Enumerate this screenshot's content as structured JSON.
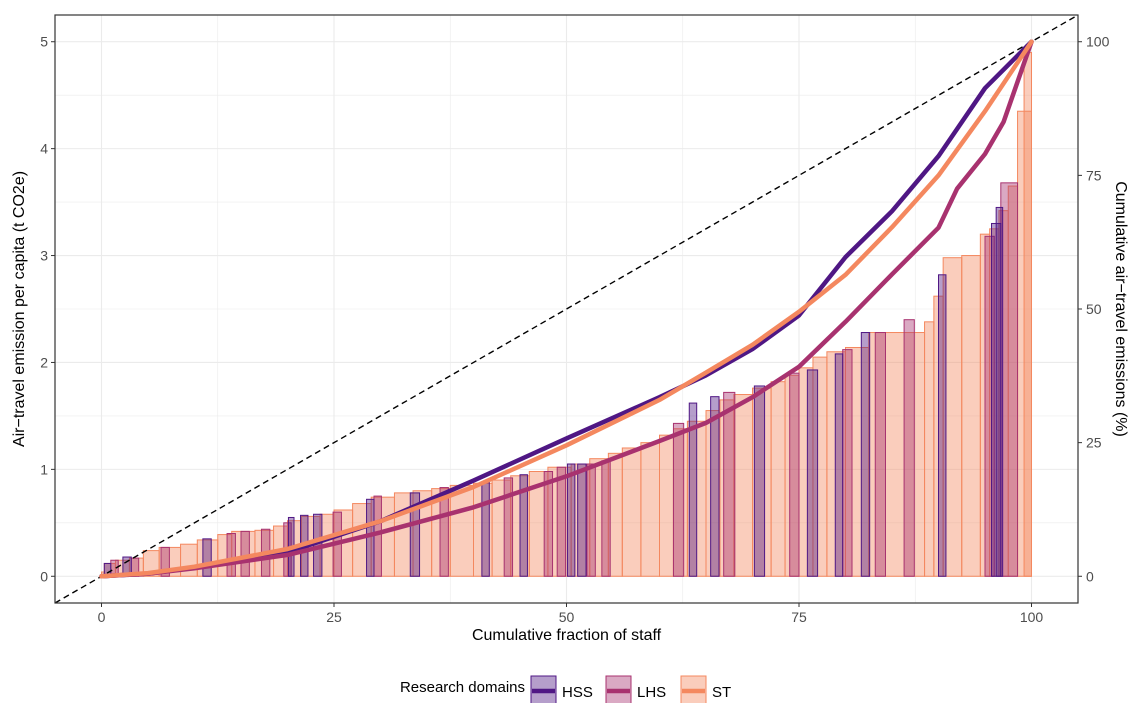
{
  "chart_data": {
    "type": "bar+line",
    "xlabel": "Cumulative fraction of staff",
    "ylabel_left": "Air−travel emission per capita (t CO2e)",
    "ylabel_right": "Cumulative air−travel emissions (%)",
    "xlim": [
      -5,
      105
    ],
    "ylim_left": [
      -0.25,
      5.25
    ],
    "x_ticks": [
      0,
      25,
      50,
      75,
      100
    ],
    "y_left_ticks": [
      0,
      1,
      2,
      3,
      4,
      5
    ],
    "y_right_ticks": [
      0,
      25,
      50,
      75,
      100
    ],
    "grid": true,
    "legend": {
      "title": "Research domains",
      "position": "bottom",
      "entries": [
        "HSS",
        "LHS",
        "ST"
      ]
    },
    "colors": {
      "HSS": "#4f1784",
      "LHS": "#a8326f",
      "ST": "#f4885f",
      "equality_line": "#000000"
    },
    "bars": {
      "HSS": [
        [
          0.3,
          1.0,
          0.12
        ],
        [
          2.3,
          3.2,
          0.18
        ],
        [
          10.9,
          11.8,
          0.35
        ],
        [
          20.1,
          20.7,
          0.55
        ],
        [
          21.4,
          22.2,
          0.57
        ],
        [
          22.8,
          23.7,
          0.58
        ],
        [
          28.5,
          29.3,
          0.72
        ],
        [
          33.2,
          34.2,
          0.78
        ],
        [
          40.9,
          41.7,
          0.88
        ],
        [
          45.0,
          45.8,
          0.95
        ],
        [
          50.1,
          50.9,
          1.05
        ],
        [
          51.2,
          52.1,
          1.05
        ],
        [
          63.2,
          64.0,
          1.62
        ],
        [
          65.5,
          66.4,
          1.68
        ],
        [
          70.2,
          71.3,
          1.78
        ],
        [
          75.9,
          77.0,
          1.93
        ],
        [
          78.9,
          79.7,
          2.08
        ],
        [
          81.7,
          82.6,
          2.28
        ],
        [
          90.0,
          90.8,
          2.82
        ],
        [
          95.7,
          96.7,
          3.3
        ],
        [
          96.2,
          96.9,
          3.45
        ]
      ],
      "LHS": [
        [
          1.0,
          1.8,
          0.15
        ],
        [
          3.2,
          4.0,
          0.17
        ],
        [
          6.4,
          7.3,
          0.27
        ],
        [
          13.5,
          14.4,
          0.4
        ],
        [
          15.0,
          15.9,
          0.42
        ],
        [
          17.2,
          18.1,
          0.44
        ],
        [
          19.6,
          20.4,
          0.5
        ],
        [
          24.9,
          25.8,
          0.6
        ],
        [
          29.3,
          30.1,
          0.75
        ],
        [
          36.4,
          37.3,
          0.83
        ],
        [
          43.3,
          44.2,
          0.92
        ],
        [
          47.6,
          48.5,
          0.98
        ],
        [
          49.0,
          49.9,
          1.02
        ],
        [
          52.2,
          53.1,
          1.05
        ],
        [
          53.8,
          54.7,
          1.08
        ],
        [
          61.5,
          62.6,
          1.43
        ],
        [
          66.9,
          68.1,
          1.72
        ],
        [
          74.0,
          75.0,
          1.9
        ],
        [
          79.7,
          80.7,
          2.12
        ],
        [
          83.2,
          84.3,
          2.28
        ],
        [
          86.3,
          87.4,
          2.4
        ],
        [
          95.0,
          96.0,
          3.18
        ],
        [
          96.7,
          98.5,
          3.68
        ]
      ],
      "ST": [
        [
          0,
          0.3,
          0.04
        ],
        [
          0.3,
          1.5,
          0.12
        ],
        [
          1.5,
          3.0,
          0.15
        ],
        [
          3.0,
          4.5,
          0.17
        ],
        [
          4.5,
          6.2,
          0.24
        ],
        [
          6.2,
          8.5,
          0.27
        ],
        [
          8.5,
          10.3,
          0.3
        ],
        [
          10.3,
          12.5,
          0.34
        ],
        [
          12.5,
          14.0,
          0.39
        ],
        [
          14.0,
          16.5,
          0.42
        ],
        [
          16.5,
          18.5,
          0.43
        ],
        [
          18.5,
          20.0,
          0.47
        ],
        [
          20.0,
          21.5,
          0.52
        ],
        [
          21.5,
          23.5,
          0.56
        ],
        [
          23.5,
          25.0,
          0.58
        ],
        [
          25.0,
          27.0,
          0.62
        ],
        [
          27.0,
          29.0,
          0.68
        ],
        [
          29.0,
          31.5,
          0.74
        ],
        [
          31.5,
          33.5,
          0.78
        ],
        [
          33.5,
          35.5,
          0.8
        ],
        [
          35.5,
          37.5,
          0.82
        ],
        [
          37.5,
          40.0,
          0.85
        ],
        [
          40.0,
          42.0,
          0.87
        ],
        [
          42.0,
          44.0,
          0.9
        ],
        [
          44.0,
          46.0,
          0.94
        ],
        [
          46.0,
          48.0,
          0.98
        ],
        [
          48.0,
          50.5,
          1.02
        ],
        [
          50.5,
          52.5,
          1.05
        ],
        [
          52.5,
          54.5,
          1.1
        ],
        [
          54.5,
          56.0,
          1.15
        ],
        [
          56.0,
          58.0,
          1.2
        ],
        [
          58.0,
          60.0,
          1.25
        ],
        [
          60.0,
          61.5,
          1.32
        ],
        [
          61.5,
          63.0,
          1.38
        ],
        [
          63.0,
          65.0,
          1.45
        ],
        [
          65.0,
          66.5,
          1.55
        ],
        [
          66.5,
          68.0,
          1.65
        ],
        [
          68.0,
          70.0,
          1.7
        ],
        [
          70.0,
          72.0,
          1.76
        ],
        [
          72.0,
          73.5,
          1.82
        ],
        [
          73.5,
          75.0,
          1.88
        ],
        [
          75.0,
          76.5,
          1.95
        ],
        [
          76.5,
          78.0,
          2.05
        ],
        [
          78.0,
          80.0,
          2.1
        ],
        [
          80.0,
          82.5,
          2.14
        ],
        [
          82.5,
          88.5,
          2.28
        ],
        [
          88.5,
          89.5,
          2.38
        ],
        [
          89.5,
          90.5,
          2.62
        ],
        [
          90.5,
          92.5,
          2.98
        ],
        [
          92.5,
          94.5,
          3.0
        ],
        [
          94.5,
          95.5,
          3.2
        ],
        [
          95.5,
          96.5,
          3.25
        ],
        [
          96.5,
          97.5,
          3.42
        ],
        [
          97.5,
          98.5,
          3.65
        ],
        [
          98.5,
          100.0,
          4.35
        ],
        [
          99.2,
          100.0,
          4.9
        ]
      ]
    },
    "cumulative_curves": {
      "HSS": {
        "x": [
          0,
          5,
          10,
          20,
          30,
          40,
          50,
          60,
          65,
          70,
          75,
          80,
          85,
          90,
          95,
          100
        ],
        "y": [
          0,
          0.5,
          1.6,
          4.5,
          10.3,
          17.9,
          25.8,
          33.5,
          37.6,
          42.5,
          48.8,
          59.7,
          68.3,
          78.6,
          91.3,
          100
        ]
      },
      "LHS": {
        "x": [
          0,
          5,
          10,
          20,
          30,
          40,
          50,
          60,
          65,
          70,
          75,
          80,
          85,
          90,
          92,
          95,
          97,
          100
        ],
        "y": [
          0,
          0.5,
          1.5,
          4.0,
          8.2,
          12.9,
          18.7,
          25.3,
          28.7,
          33.5,
          39.2,
          47.6,
          56.5,
          65.2,
          72.5,
          79.0,
          85.0,
          100
        ]
      },
      "ST": {
        "x": [
          0,
          5,
          10,
          20,
          30,
          40,
          50,
          60,
          65,
          70,
          75,
          80,
          85,
          90,
          95,
          100
        ],
        "y": [
          0,
          0.6,
          1.8,
          5.1,
          10.3,
          16.7,
          24.5,
          33.0,
          38.1,
          43.3,
          49.5,
          56.4,
          65.3,
          75.0,
          87.0,
          100
        ]
      }
    },
    "equality_line": {
      "x": [
        -5,
        105
      ],
      "y": [
        -5,
        105
      ]
    }
  }
}
